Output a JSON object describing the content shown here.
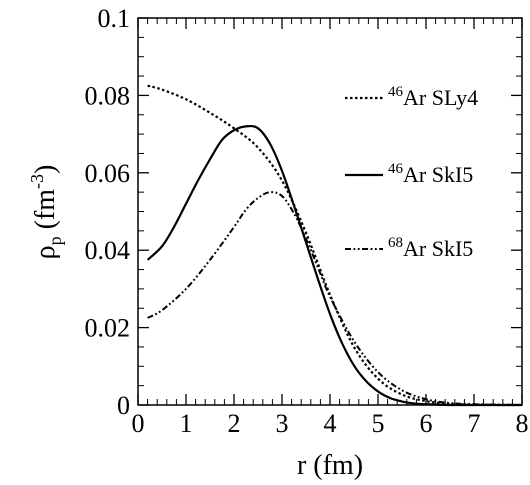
{
  "chart_data": {
    "type": "line",
    "xlabel": "r (fm)",
    "ylabel": "ρp (fm-3)",
    "ylabel_parts": {
      "base": "ρ",
      "sub": "p",
      "mid": " (fm",
      "sup": "-3",
      "end": ")"
    },
    "xlim": [
      0,
      8
    ],
    "ylim": [
      0,
      0.1
    ],
    "x_ticks": [
      0,
      1,
      2,
      3,
      4,
      5,
      6,
      7,
      8
    ],
    "x_tick_labels": [
      "0",
      "1",
      "2",
      "3",
      "4",
      "5",
      "6",
      "7",
      "8"
    ],
    "y_ticks": [
      0,
      0.02,
      0.04,
      0.06,
      0.08,
      0.1
    ],
    "y_tick_labels": [
      "0",
      "0.02",
      "0.04",
      "0.06",
      "0.08",
      "0.1"
    ],
    "grid": false,
    "legend_position": "right",
    "series": [
      {
        "name": "46Ar SLy4",
        "legend": {
          "sup": "46",
          "text": "Ar SLy4"
        },
        "style": "dotted",
        "x": [
          0.2,
          0.5,
          1.0,
          1.5,
          2.0,
          2.5,
          3.0,
          3.5,
          4.0,
          4.5,
          5.0,
          5.5,
          6.0,
          6.5,
          7.0,
          7.5,
          8.0
        ],
        "y": [
          0.0825,
          0.0815,
          0.079,
          0.0755,
          0.0715,
          0.0665,
          0.058,
          0.0445,
          0.0285,
          0.015,
          0.0068,
          0.0027,
          0.001,
          0.0003,
          0.0001,
          0.0,
          0.0
        ]
      },
      {
        "name": "46Ar SkI5",
        "legend": {
          "sup": "46",
          "text": "Ar SkI5"
        },
        "style": "solid",
        "x": [
          0.2,
          0.5,
          0.75,
          1.0,
          1.25,
          1.5,
          1.75,
          2.0,
          2.25,
          2.5,
          2.75,
          3.0,
          3.25,
          3.5,
          3.75,
          4.0,
          4.25,
          4.5,
          4.75,
          5.0,
          5.25,
          5.5,
          5.75,
          6.0,
          6.5,
          7.0,
          7.5,
          8.0
        ],
        "y": [
          0.0375,
          0.041,
          0.046,
          0.052,
          0.058,
          0.0635,
          0.0685,
          0.071,
          0.072,
          0.0715,
          0.0675,
          0.0605,
          0.0515,
          0.042,
          0.0325,
          0.0235,
          0.016,
          0.0102,
          0.0062,
          0.0035,
          0.0018,
          0.0009,
          0.0004,
          0.0002,
          0.0,
          0.0,
          0.0,
          0.0
        ]
      },
      {
        "name": "68Ar SkI5",
        "legend": {
          "sup": "68",
          "text": "Ar SkI5"
        },
        "style": "dash-dot-dot",
        "x": [
          0.2,
          0.5,
          1.0,
          1.5,
          2.0,
          2.25,
          2.5,
          2.75,
          3.0,
          3.25,
          3.5,
          3.75,
          4.0,
          4.5,
          5.0,
          5.5,
          6.0,
          6.5,
          7.0,
          7.5,
          8.0
        ],
        "y": [
          0.0225,
          0.0245,
          0.03,
          0.0375,
          0.046,
          0.0505,
          0.0535,
          0.055,
          0.054,
          0.0495,
          0.043,
          0.0355,
          0.028,
          0.0165,
          0.0085,
          0.0038,
          0.0015,
          0.0005,
          0.0002,
          0.0001,
          0.0
        ]
      }
    ]
  }
}
